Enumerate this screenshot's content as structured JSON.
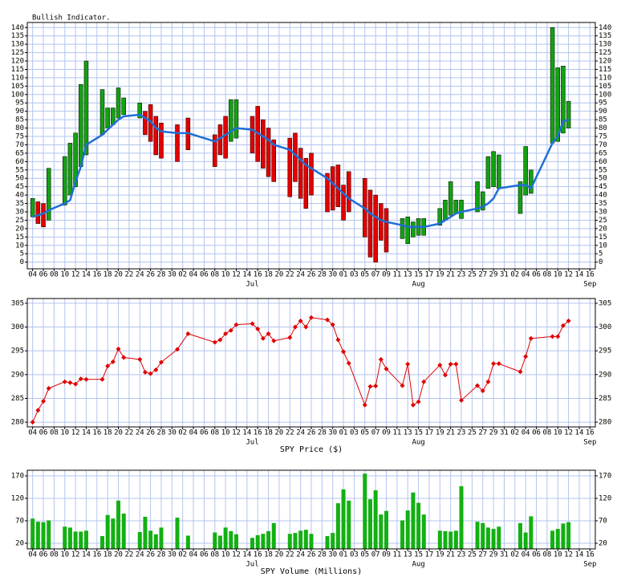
{
  "x_axis": {
    "dates": [
      "06-04",
      "06-05",
      "06-06",
      "06-07",
      "06-10",
      "06-11",
      "06-12",
      "06-13",
      "06-14",
      "06-17",
      "06-18",
      "06-19",
      "06-20",
      "06-21",
      "06-24",
      "06-25",
      "06-26",
      "06-27",
      "06-28",
      "07-01",
      "07-03",
      "07-08",
      "07-09",
      "07-10",
      "07-11",
      "07-12",
      "07-15",
      "07-16",
      "07-17",
      "07-18",
      "07-19",
      "07-22",
      "07-23",
      "07-24",
      "07-25",
      "07-26",
      "07-29",
      "07-30",
      "07-31",
      "08-01",
      "08-02",
      "08-05",
      "08-06",
      "08-07",
      "08-08",
      "08-09",
      "08-12",
      "08-13",
      "08-14",
      "08-15",
      "08-16",
      "08-19",
      "08-20",
      "08-21",
      "08-22",
      "08-23",
      "08-26",
      "08-27",
      "08-28",
      "08-29",
      "08-30",
      "09-03",
      "09-04",
      "09-05",
      "09-09",
      "09-10",
      "09-11",
      "09-12"
    ],
    "xlim": [
      "06-03",
      "09-17"
    ],
    "xticks": [
      {
        "value": "06-04",
        "label": "04"
      },
      {
        "value": "06-06",
        "label": "06"
      },
      {
        "value": "06-08",
        "label": "08"
      },
      {
        "value": "06-10",
        "label": "10"
      },
      {
        "value": "06-12",
        "label": "12"
      },
      {
        "value": "06-14",
        "label": "14"
      },
      {
        "value": "06-16",
        "label": "16"
      },
      {
        "value": "06-18",
        "label": "18"
      },
      {
        "value": "06-20",
        "label": "20"
      },
      {
        "value": "06-22",
        "label": "22"
      },
      {
        "value": "06-24",
        "label": "24"
      },
      {
        "value": "06-26",
        "label": "26"
      },
      {
        "value": "06-28",
        "label": "28"
      },
      {
        "value": "06-30",
        "label": "30"
      },
      {
        "value": "07-02",
        "label": "02"
      },
      {
        "value": "07-04",
        "label": "04"
      },
      {
        "value": "07-06",
        "label": "06"
      },
      {
        "value": "07-08",
        "label": "08"
      },
      {
        "value": "07-10",
        "label": "10"
      },
      {
        "value": "07-12",
        "label": "12"
      },
      {
        "value": "07-14",
        "label": "14"
      },
      {
        "value": "07-16",
        "label": "16"
      },
      {
        "value": "07-18",
        "label": "18"
      },
      {
        "value": "07-20",
        "label": "20"
      },
      {
        "value": "07-22",
        "label": "22"
      },
      {
        "value": "07-24",
        "label": "24"
      },
      {
        "value": "07-26",
        "label": "26"
      },
      {
        "value": "07-28",
        "label": "28"
      },
      {
        "value": "07-30",
        "label": "30"
      },
      {
        "value": "08-01",
        "label": "01"
      },
      {
        "value": "08-03",
        "label": "03"
      },
      {
        "value": "08-05",
        "label": "05"
      },
      {
        "value": "08-07",
        "label": "07"
      },
      {
        "value": "08-09",
        "label": "09"
      },
      {
        "value": "08-11",
        "label": "11"
      },
      {
        "value": "08-13",
        "label": "13"
      },
      {
        "value": "08-15",
        "label": "15"
      },
      {
        "value": "08-17",
        "label": "17"
      },
      {
        "value": "08-19",
        "label": "19"
      },
      {
        "value": "08-21",
        "label": "21"
      },
      {
        "value": "08-23",
        "label": "23"
      },
      {
        "value": "08-25",
        "label": "25"
      },
      {
        "value": "08-27",
        "label": "27"
      },
      {
        "value": "08-29",
        "label": "29"
      },
      {
        "value": "08-31",
        "label": "31"
      },
      {
        "value": "09-02",
        "label": "02"
      },
      {
        "value": "09-04",
        "label": "04"
      },
      {
        "value": "09-06",
        "label": "06"
      },
      {
        "value": "09-08",
        "label": "08"
      },
      {
        "value": "09-10",
        "label": "10"
      },
      {
        "value": "09-12",
        "label": "12"
      },
      {
        "value": "09-14",
        "label": "14"
      },
      {
        "value": "09-16",
        "label": "16"
      }
    ],
    "months": [
      {
        "value": "07-15",
        "label": "Jul"
      },
      {
        "value": "08-15",
        "label": "Aug"
      },
      {
        "value": "09-16",
        "label": "Sep"
      }
    ]
  },
  "chart_data": [
    {
      "type": "floating_bar_line",
      "title": "Bullish Indicator.",
      "bar_start": [
        27,
        36,
        35,
        25,
        34,
        40,
        45,
        57,
        64,
        76,
        80,
        82,
        86,
        88,
        86,
        90,
        94,
        87,
        83,
        82,
        86,
        76,
        82,
        87,
        72,
        74,
        87,
        93,
        85,
        80,
        73,
        74,
        77,
        68,
        62,
        65,
        53,
        57,
        58,
        46,
        54,
        50,
        43,
        40,
        35,
        32,
        14,
        11,
        15,
        16,
        16,
        22,
        25,
        28,
        29,
        26,
        30,
        31,
        44,
        45,
        44,
        29,
        40,
        41,
        71,
        72,
        77,
        80
      ],
      "bar_end": [
        38,
        23,
        21,
        56,
        63,
        71,
        77,
        106,
        120,
        103,
        92,
        92,
        104,
        98,
        95,
        76,
        72,
        64,
        62,
        60,
        67,
        57,
        64,
        62,
        97,
        97,
        65,
        60,
        56,
        51,
        48,
        39,
        48,
        38,
        32,
        40,
        30,
        31,
        33,
        25,
        30,
        15,
        3,
        0,
        13,
        6,
        26,
        27,
        24,
        26,
        26,
        32,
        37,
        48,
        37,
        37,
        48,
        42,
        63,
        66,
        64,
        48,
        69,
        55,
        140,
        116,
        117,
        96
      ],
      "line": [
        27,
        28,
        29,
        31,
        35,
        37,
        48,
        57,
        70,
        76,
        79,
        82,
        85,
        87,
        88,
        86,
        84,
        80,
        78,
        77,
        77,
        72,
        74,
        76,
        78,
        80,
        79,
        77,
        75,
        73,
        70,
        67,
        64,
        61,
        58,
        56,
        50,
        47,
        44,
        41,
        38,
        32,
        29,
        27,
        25,
        24,
        22,
        21,
        21,
        21,
        21,
        23,
        25,
        27,
        29,
        30,
        32,
        33,
        35,
        38,
        44,
        46,
        46,
        44,
        71,
        75,
        84,
        85
      ],
      "up_color": "#13a013",
      "down_color": "#e00000",
      "line_color": "#1f6fd6",
      "ylim": [
        -4,
        143
      ],
      "yticks": [
        0,
        5,
        10,
        15,
        20,
        25,
        30,
        35,
        40,
        45,
        50,
        55,
        60,
        65,
        70,
        75,
        80,
        85,
        90,
        95,
        100,
        105,
        110,
        115,
        120,
        125,
        130,
        135,
        140
      ],
      "grid": true
    },
    {
      "type": "line",
      "xlabel": "SPY Price ($)",
      "values": [
        280.0,
        282.5,
        284.4,
        287.1,
        288.5,
        288.3,
        288.0,
        289.1,
        289.0,
        289.0,
        291.8,
        292.7,
        295.4,
        293.6,
        293.2,
        290.5,
        290.2,
        291.0,
        292.6,
        295.3,
        298.6,
        296.8,
        297.3,
        298.6,
        299.3,
        300.5,
        300.7,
        299.6,
        297.6,
        298.6,
        297.1,
        297.8,
        300.0,
        301.3,
        300.0,
        302.0,
        301.5,
        300.5,
        297.3,
        294.8,
        292.4,
        283.6,
        287.5,
        287.6,
        293.2,
        291.2,
        287.7,
        292.2,
        283.6,
        284.3,
        288.5,
        292.0,
        289.9,
        292.2,
        292.2,
        284.6,
        287.7,
        286.6,
        288.5,
        292.3,
        292.3,
        290.6,
        293.8,
        297.6,
        298.0,
        298.0,
        300.3,
        301.3
      ],
      "color": "#e00000",
      "ylim": [
        279,
        306
      ],
      "yticks": [
        280,
        285,
        290,
        295,
        300,
        305
      ],
      "grid": true
    },
    {
      "type": "bar",
      "xlabel": "SPY Volume (Millions)",
      "values": [
        75,
        68,
        67,
        71,
        57,
        55,
        46,
        46,
        48,
        36,
        83,
        75,
        115,
        86,
        45,
        79,
        48,
        40,
        55,
        77,
        37,
        44,
        37,
        55,
        47,
        40,
        32,
        38,
        41,
        47,
        65,
        41,
        43,
        48,
        50,
        41,
        36,
        43,
        109,
        140,
        115,
        175,
        118,
        138,
        84,
        92,
        71,
        93,
        133,
        110,
        84,
        48,
        47,
        46,
        48,
        147,
        68,
        65,
        55,
        52,
        57,
        65,
        44,
        80,
        48,
        52,
        64,
        67
      ],
      "color": "#13b013",
      "ylim": [
        7.5,
        182.5
      ],
      "yticks": [
        20,
        70,
        120,
        170
      ],
      "grid": true
    }
  ]
}
